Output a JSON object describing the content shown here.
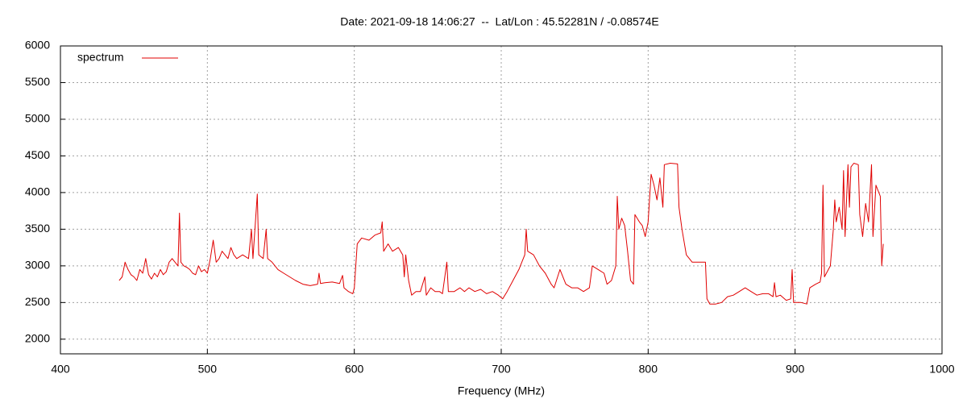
{
  "chart_data": {
    "type": "line",
    "title": "Date: 2021-09-18 14:06:27  --  Lat/Lon : 45.52281N / -0.08574E",
    "x_label": "Frequency (MHz)",
    "xlim": [
      400,
      1000
    ],
    "xticks": [
      400,
      500,
      600,
      700,
      800,
      900,
      1000
    ],
    "ylim": [
      1800,
      6000
    ],
    "yticks": [
      2000,
      2500,
      3000,
      3500,
      4000,
      4500,
      5000,
      5500,
      6000
    ],
    "grid": true,
    "legend": "top-left",
    "x": [
      440,
      442,
      444,
      446,
      448,
      450,
      452,
      454,
      456,
      458,
      460,
      462,
      464,
      466,
      468,
      470,
      472,
      474,
      476,
      478,
      480,
      481,
      482,
      484,
      486,
      488,
      490,
      492,
      494,
      496,
      498,
      500,
      502,
      504,
      506,
      508,
      510,
      512,
      514,
      516,
      518,
      520,
      524,
      528,
      530,
      531,
      534,
      535,
      538,
      540,
      541,
      544,
      548,
      552,
      556,
      560,
      565,
      570,
      575,
      576,
      577,
      580,
      585,
      590,
      592,
      593,
      596,
      599,
      600,
      602,
      605,
      610,
      614,
      618,
      619,
      620,
      623,
      626,
      630,
      633,
      634,
      635,
      637,
      639,
      642,
      645,
      648,
      649,
      652,
      655,
      658,
      660,
      663,
      664,
      668,
      672,
      675,
      678,
      682,
      686,
      690,
      694,
      698,
      701,
      704,
      708,
      712,
      716,
      717,
      718,
      722,
      726,
      730,
      734,
      736,
      740,
      744,
      748,
      752,
      756,
      760,
      762,
      766,
      770,
      772,
      775,
      778,
      779,
      780,
      782,
      784,
      786,
      788,
      790,
      791,
      794,
      796,
      798,
      800,
      802,
      804,
      806,
      808,
      810,
      811,
      815,
      820,
      821,
      823,
      826,
      830,
      835,
      839,
      840,
      842,
      846,
      850,
      854,
      858,
      862,
      866,
      870,
      874,
      878,
      882,
      885,
      886,
      887,
      890,
      894,
      897,
      898,
      899,
      904,
      908,
      910,
      914,
      917,
      918,
      919,
      920,
      924,
      926,
      927,
      928,
      930,
      932,
      933,
      934,
      936,
      937,
      938,
      940,
      943,
      944,
      946,
      948,
      950,
      952,
      953,
      955,
      958,
      959,
      960
    ],
    "series": [
      {
        "name": "spectrum",
        "color": "#e00000",
        "values": [
          2800,
          2850,
          3050,
          2950,
          2880,
          2850,
          2800,
          2950,
          2900,
          3100,
          2880,
          2820,
          2900,
          2850,
          2950,
          2880,
          2920,
          3050,
          3100,
          3050,
          3000,
          3720,
          3050,
          3000,
          2980,
          2950,
          2900,
          2880,
          3000,
          2920,
          2950,
          2900,
          3100,
          3350,
          3050,
          3100,
          3200,
          3150,
          3100,
          3250,
          3150,
          3100,
          3150,
          3100,
          3500,
          3100,
          3980,
          3150,
          3100,
          3500,
          3100,
          3050,
          2950,
          2900,
          2850,
          2800,
          2750,
          2730,
          2750,
          2900,
          2760,
          2770,
          2780,
          2760,
          2870,
          2700,
          2650,
          2620,
          2700,
          3300,
          3380,
          3350,
          3420,
          3450,
          3600,
          3200,
          3300,
          3200,
          3250,
          3150,
          2850,
          3150,
          2800,
          2600,
          2650,
          2650,
          2850,
          2600,
          2700,
          2650,
          2650,
          2620,
          3050,
          2650,
          2650,
          2700,
          2650,
          2700,
          2650,
          2680,
          2620,
          2650,
          2600,
          2550,
          2650,
          2800,
          2950,
          3150,
          3500,
          3200,
          3150,
          3000,
          2900,
          2750,
          2700,
          2950,
          2750,
          2700,
          2700,
          2650,
          2700,
          3000,
          2950,
          2900,
          2750,
          2800,
          3000,
          3950,
          3500,
          3650,
          3550,
          3200,
          2800,
          2750,
          3700,
          3600,
          3550,
          3400,
          3600,
          4250,
          4100,
          3900,
          4200,
          3800,
          4380,
          4400,
          4390,
          3800,
          3500,
          3150,
          3050,
          3050,
          3050,
          2550,
          2480,
          2480,
          2500,
          2580,
          2600,
          2650,
          2700,
          2650,
          2600,
          2620,
          2620,
          2580,
          2770,
          2580,
          2600,
          2530,
          2550,
          2950,
          2500,
          2500,
          2480,
          2700,
          2750,
          2780,
          2900,
          4100,
          2850,
          3000,
          3500,
          3900,
          3600,
          3800,
          3500,
          4300,
          3400,
          4380,
          3800,
          4350,
          4400,
          4380,
          3700,
          3400,
          3850,
          3600,
          4380,
          3400,
          4100,
          3950,
          3000,
          3300
        ]
      }
    ]
  }
}
